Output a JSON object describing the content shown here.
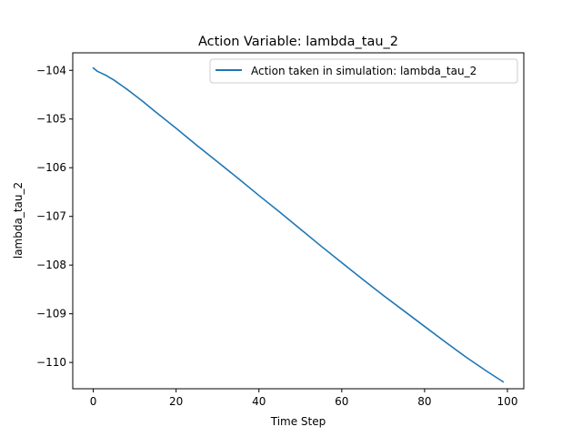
{
  "chart_data": {
    "type": "line",
    "title": "Action Variable: lambda_tau_2",
    "xlabel": "Time Step",
    "ylabel": "lambda_tau_2",
    "xlim": [
      -4.95,
      103.95
    ],
    "ylim": [
      -110.54,
      -103.64
    ],
    "xticks": [
      0,
      20,
      40,
      60,
      80,
      100
    ],
    "xtick_labels": [
      "0",
      "20",
      "40",
      "60",
      "80",
      "100"
    ],
    "yticks": [
      -110,
      -109,
      -108,
      -107,
      -106,
      -105,
      -104
    ],
    "ytick_labels": [
      "−110",
      "−109",
      "−108",
      "−107",
      "−106",
      "−105",
      "−104"
    ],
    "grid": false,
    "legend_position": "top-right",
    "series": [
      {
        "name": "Action taken in simulation: lambda_tau_2",
        "color": "#1f77b4",
        "x": [
          0,
          1,
          2,
          3,
          4,
          5,
          6,
          7,
          8,
          10,
          12,
          15,
          20,
          25,
          30,
          35,
          40,
          45,
          50,
          55,
          60,
          65,
          70,
          75,
          80,
          85,
          90,
          95,
          99
        ],
        "y": [
          -103.95,
          -104.02,
          -104.06,
          -104.1,
          -104.15,
          -104.2,
          -104.26,
          -104.32,
          -104.38,
          -104.51,
          -104.64,
          -104.85,
          -105.19,
          -105.54,
          -105.88,
          -106.22,
          -106.57,
          -106.91,
          -107.26,
          -107.61,
          -107.95,
          -108.29,
          -108.62,
          -108.94,
          -109.26,
          -109.58,
          -109.89,
          -110.18,
          -110.4
        ]
      }
    ]
  }
}
